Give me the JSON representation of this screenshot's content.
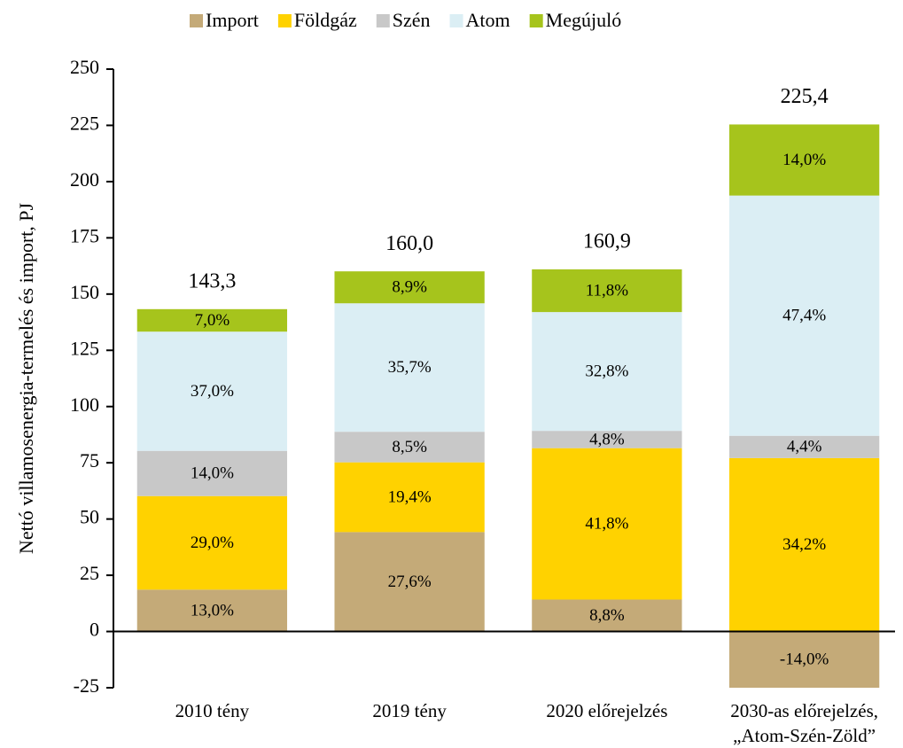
{
  "chart_data": {
    "type": "stacked_bar",
    "y_label": "Nettó villamosenergia-termelés és import, PJ",
    "categories": [
      "2010 tény",
      "2019 tény",
      "2020 előrejelzés",
      "2030-as előrejelzés,\n„Atom-Szén-Zöld”"
    ],
    "series": [
      {
        "name": "Import",
        "color": "#c4aa78",
        "values": [
          18.6,
          44.2,
          14.2,
          -31.6
        ],
        "share_labels": [
          "13,0%",
          "27,6%",
          "8,8%",
          "-14,0%"
        ]
      },
      {
        "name": "Földgáz",
        "color": "#ffd200",
        "values": [
          41.6,
          31.0,
          67.3,
          77.1
        ],
        "share_labels": [
          "29,0%",
          "19,4%",
          "41,8%",
          "34,2%"
        ]
      },
      {
        "name": "Szén",
        "color": "#c8c8c8",
        "values": [
          20.1,
          13.6,
          7.7,
          9.9
        ],
        "share_labels": [
          "14,0%",
          "8,5%",
          "4,8%",
          "4,4%"
        ]
      },
      {
        "name": "Atom",
        "color": "#dbeef4",
        "values": [
          53.0,
          57.1,
          52.8,
          106.8
        ],
        "share_labels": [
          "37,0%",
          "35,7%",
          "32,8%",
          "47,4%"
        ]
      },
      {
        "name": "Megújuló",
        "color": "#a6c41c",
        "values": [
          10.0,
          14.2,
          19.0,
          31.6
        ],
        "share_labels": [
          "7,0%",
          "8,9%",
          "11,8%",
          "14,0%"
        ]
      }
    ],
    "totals": [
      143.3,
      160.0,
      160.9,
      225.4
    ],
    "total_labels": [
      "143,3",
      "160,0",
      "160,9",
      "225,4"
    ],
    "ylim": [
      -25,
      250
    ],
    "yticks": [
      -25,
      0,
      25,
      50,
      75,
      100,
      125,
      150,
      175,
      200,
      225,
      250
    ],
    "legend": "top"
  }
}
